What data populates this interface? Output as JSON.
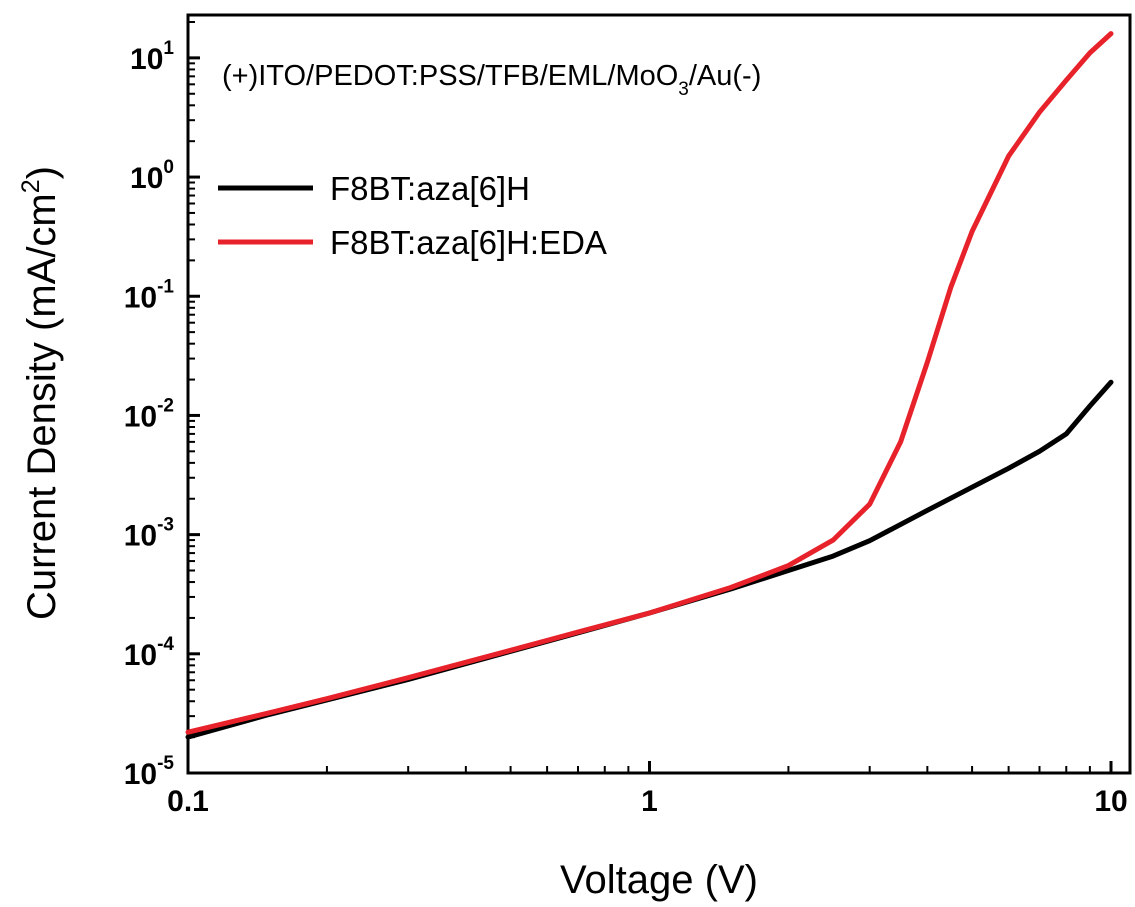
{
  "chart_data": {
    "type": "line",
    "xlabel": "Voltage (V)",
    "ylabel": "Current Density (mA/cm²)",
    "ylabel_base": "Current Density (mA/cm",
    "ylabel_sup": "2",
    "ylabel_end": ")",
    "xscale": "log",
    "yscale": "log",
    "xlim": [
      0.1,
      10
    ],
    "ylim": [
      1e-05,
      20
    ],
    "grid": false,
    "legend_position": "top-left",
    "annotation": {
      "pre": "(+)ITO/PEDOT:PSS/TFB/EML/MoO",
      "sub": "3",
      "post": "/Au(-)",
      "full": "(+)ITO/PEDOT:PSS/TFB/EML/MoO3/Au(-)"
    },
    "x_ticks": [
      {
        "value": 0.1,
        "label": "0.1"
      },
      {
        "value": 1,
        "label": "1"
      },
      {
        "value": 10,
        "label": "10"
      }
    ],
    "y_ticks": [
      {
        "value": 1e-05,
        "base": "10",
        "exp": "-5"
      },
      {
        "value": 0.0001,
        "base": "10",
        "exp": "-4"
      },
      {
        "value": 0.001,
        "base": "10",
        "exp": "-3"
      },
      {
        "value": 0.01,
        "base": "10",
        "exp": "-2"
      },
      {
        "value": 0.1,
        "base": "10",
        "exp": "-1"
      },
      {
        "value": 1,
        "base": "10",
        "exp": "0"
      },
      {
        "value": 10,
        "base": "10",
        "exp": "1"
      }
    ],
    "series": [
      {
        "name": "F8BT:aza[6]H",
        "color": "#000000",
        "x": [
          0.1,
          0.15,
          0.2,
          0.3,
          0.5,
          0.7,
          1.0,
          1.5,
          2.0,
          2.5,
          3.0,
          4.0,
          5.0,
          6.0,
          7.0,
          8.0,
          9.0,
          10.0
        ],
        "y": [
          2e-05,
          3.1e-05,
          4.1e-05,
          6.1e-05,
          0.000105,
          0.00015,
          0.00022,
          0.00035,
          0.0005,
          0.00066,
          0.00089,
          0.0016,
          0.0025,
          0.0036,
          0.005,
          0.007,
          0.012,
          0.019
        ]
      },
      {
        "name": "F8BT:aza[6]H:EDA",
        "color": "#e8222a",
        "x": [
          0.1,
          0.15,
          0.2,
          0.3,
          0.5,
          0.7,
          1.0,
          1.5,
          2.0,
          2.5,
          3.0,
          3.5,
          4.0,
          4.5,
          5.0,
          6.0,
          7.0,
          8.0,
          9.0,
          10.0
        ],
        "y": [
          2.2e-05,
          3.2e-05,
          4.2e-05,
          6.3e-05,
          0.000107,
          0.000152,
          0.00022,
          0.00036,
          0.00055,
          0.0009,
          0.0018,
          0.006,
          0.028,
          0.12,
          0.35,
          1.5,
          3.5,
          6.5,
          11.0,
          16.0
        ]
      }
    ]
  }
}
